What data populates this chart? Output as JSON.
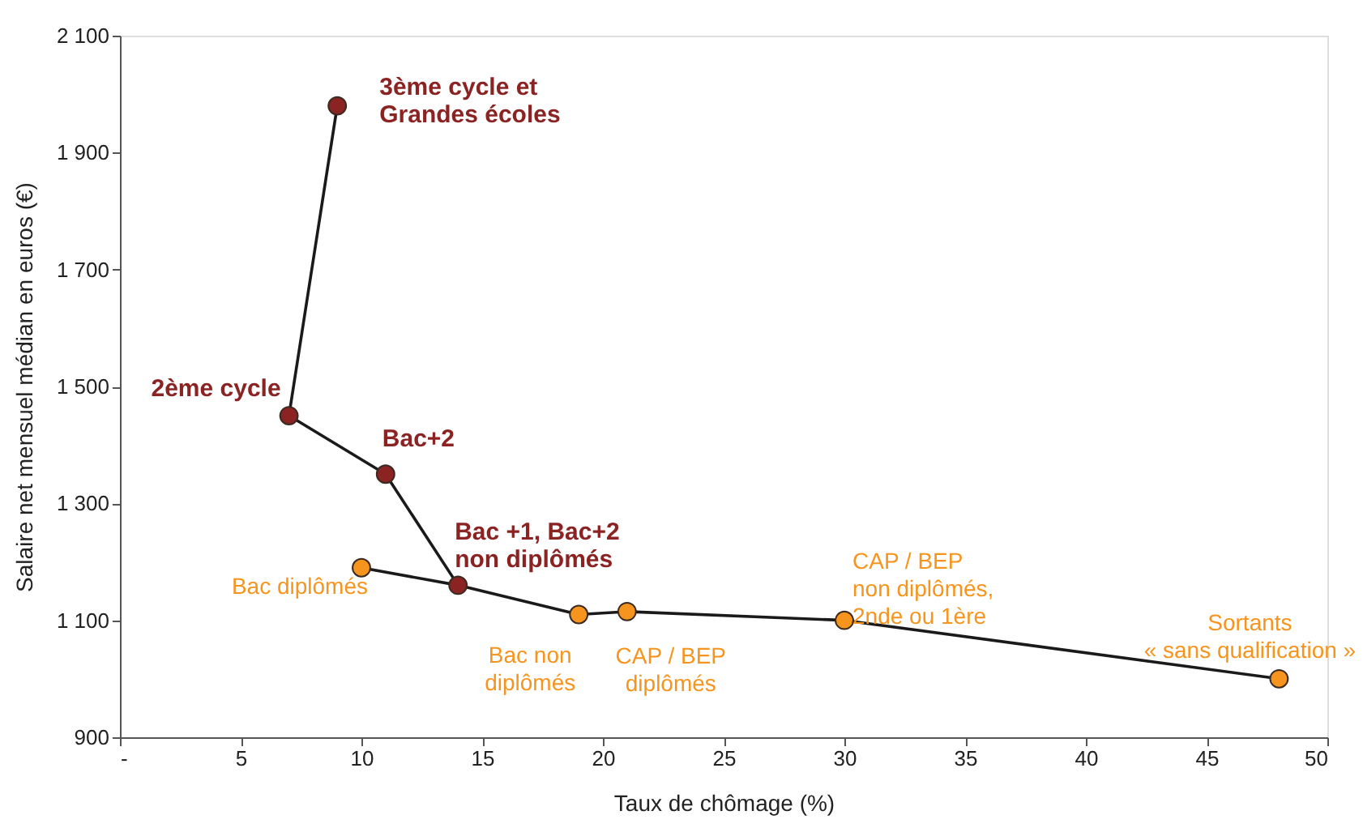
{
  "chart_data": {
    "type": "scatter",
    "xlabel": "Taux de chômage (%)",
    "ylabel": "Salaire net mensuel médian en euros (€)",
    "xlim": [
      0,
      50
    ],
    "xticks": [
      {
        "value": 0,
        "label": "-"
      },
      5,
      10,
      15,
      20,
      25,
      30,
      35,
      40,
      45,
      50
    ],
    "ylim": [
      900,
      2100
    ],
    "yticks": [
      900,
      {
        "value": 1100,
        "label": "1 100"
      },
      {
        "value": 1300,
        "label": "1 300"
      },
      {
        "value": 1500,
        "label": "1 500"
      },
      {
        "value": 1700,
        "label": "1 700"
      },
      {
        "value": 1900,
        "label": "1 900"
      },
      {
        "value": 2100,
        "label": "2 100"
      }
    ],
    "grid": false,
    "series": [
      {
        "type": "line",
        "marker": "none",
        "color": "#1a1a1a",
        "x": [
          9,
          7,
          11,
          14
        ],
        "values": [
          1980,
          1450,
          1350,
          1160
        ]
      },
      {
        "type": "line",
        "marker": "none",
        "color": "#1a1a1a",
        "x": [
          10,
          14,
          19,
          21,
          30,
          48
        ],
        "values": [
          1190,
          1160,
          1110,
          1115,
          1100,
          1000
        ]
      },
      {
        "marker": "circle",
        "color": "#8b2323",
        "x": [
          9,
          7,
          11,
          14
        ],
        "values": [
          1980,
          1450,
          1350,
          1160
        ]
      },
      {
        "marker": "circle",
        "color": "#f7941d",
        "x": [
          10,
          19,
          21,
          30,
          48
        ],
        "values": [
          1190,
          1110,
          1115,
          1100,
          1000
        ]
      }
    ],
    "annotations": [
      {
        "text": "3ème cycle et\nGrandes écoles",
        "x": 9,
        "y": 1980
      },
      {
        "text": "2ème cycle",
        "x": 7,
        "y": 1450
      },
      {
        "text": "Bac+2",
        "x": 11,
        "y": 1350
      },
      {
        "text": "Bac +1, Bac+2\nnon diplômés",
        "x": 14,
        "y": 1160
      },
      {
        "text": "Bac diplômés",
        "x": 10,
        "y": 1190
      },
      {
        "text": "Bac non\ndiplômés",
        "x": 19,
        "y": 1110
      },
      {
        "text": "CAP / BEP\ndiplômés",
        "x": 21,
        "y": 1115
      },
      {
        "text": "CAP / BEP\nnon diplômés,\n2nde ou 1ère",
        "x": 30,
        "y": 1100
      },
      {
        "text": "Sortants\n« sans qualification »",
        "x": 48,
        "y": 1000
      }
    ]
  }
}
